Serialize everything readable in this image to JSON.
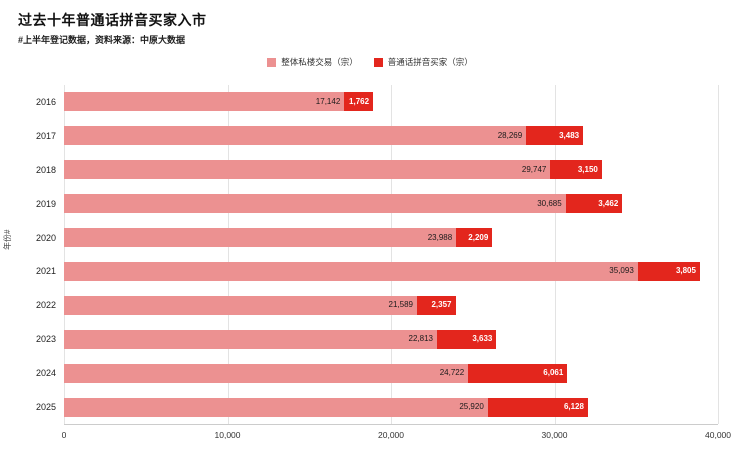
{
  "header": {
    "title": "过去十年普通话拼音买家入市",
    "subtitle": "#上半年登记数据，资料来源：中原大数据"
  },
  "colors": {
    "overall_pink": "#ec9191",
    "mandarin_red": "#e3261d",
    "gridline": "#e3e3e3"
  },
  "chart_data": {
    "type": "bar",
    "orientation": "horizontal",
    "stacked": true,
    "title": "过去十年普通话拼音买家入市",
    "subtitle": "#上半年登记数据，资料来源：中原大数据",
    "ylabel": "年份#",
    "xlabel": "",
    "xlim": [
      0,
      40000
    ],
    "xticks": [
      "0",
      "10,000",
      "20,000",
      "30,000",
      "40,000"
    ],
    "grid": "vertical",
    "legend_position": "top-center",
    "categories": [
      "2016",
      "2017",
      "2018",
      "2019",
      "2020",
      "2021",
      "2022",
      "2023",
      "2024",
      "2025"
    ],
    "series": [
      {
        "name": "整体私楼交易（宗）",
        "color": "#ec9191",
        "values": [
          17142,
          28269,
          29747,
          30685,
          23988,
          35093,
          21589,
          22813,
          24722,
          25920
        ]
      },
      {
        "name": "普通话拼音买家（宗）",
        "color": "#e3261d",
        "values": [
          1762,
          3483,
          3150,
          3462,
          2209,
          3805,
          2357,
          3633,
          6061,
          6128
        ]
      }
    ]
  }
}
